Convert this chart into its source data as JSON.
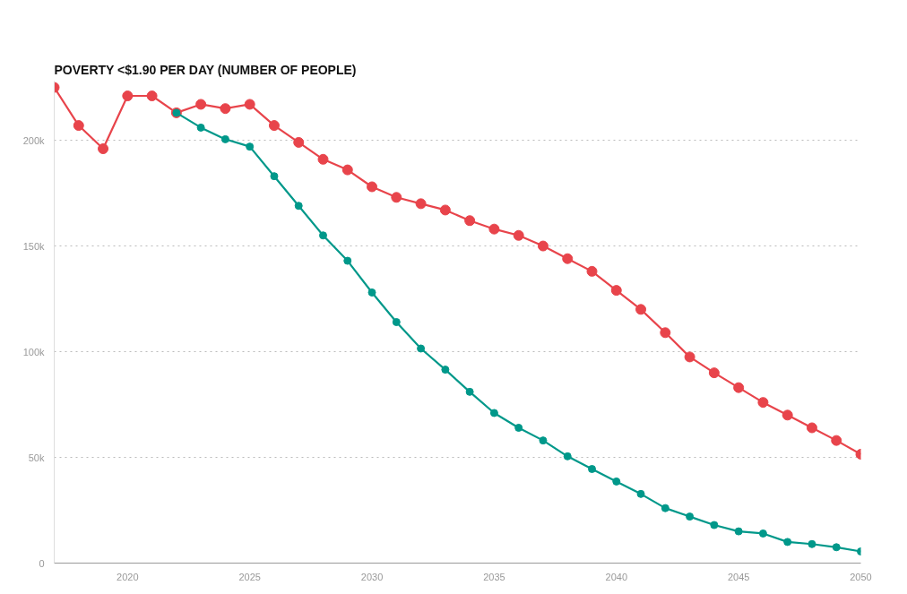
{
  "chart_data": {
    "type": "line",
    "title": "POVERTY <$1.90 PER DAY (NUMBER OF PEOPLE)",
    "x": [
      2017,
      2018,
      2019,
      2020,
      2021,
      2022,
      2023,
      2024,
      2025,
      2026,
      2027,
      2028,
      2029,
      2030,
      2031,
      2032,
      2033,
      2034,
      2035,
      2036,
      2037,
      2038,
      2039,
      2040,
      2041,
      2042,
      2043,
      2044,
      2045,
      2046,
      2047,
      2048,
      2049,
      2050
    ],
    "series": [
      {
        "color": "#e8444b",
        "values": [
          225000,
          207000,
          196000,
          221000,
          221000,
          213000,
          217000,
          215000,
          217000,
          207000,
          199000,
          191000,
          186000,
          178000,
          173000,
          170000,
          167000,
          162000,
          158000,
          155000,
          150000,
          144000,
          138000,
          129000,
          120000,
          109000,
          97500,
          90000,
          83000,
          76000,
          70000,
          64000,
          58000,
          51500
        ]
      },
      {
        "color": "#00988a",
        "values": [
          null,
          null,
          null,
          null,
          null,
          213000,
          206000,
          200500,
          197000,
          183000,
          169000,
          155000,
          143000,
          128000,
          114000,
          101500,
          91500,
          81000,
          71000,
          64000,
          58000,
          50500,
          44500,
          38600,
          32700,
          26000,
          22000,
          18000,
          15000,
          14000,
          10000,
          9000,
          7500,
          5500
        ]
      }
    ],
    "xlim": [
      2017,
      2050
    ],
    "xticks": [
      2020,
      2025,
      2030,
      2035,
      2040,
      2045,
      2050
    ],
    "ylim": [
      0,
      228000
    ],
    "yticks": [
      {
        "value": 0,
        "label": "0"
      },
      {
        "value": 50000,
        "label": "50k"
      },
      {
        "value": 100000,
        "label": "100k"
      },
      {
        "value": 150000,
        "label": "150k"
      },
      {
        "value": 200000,
        "label": "200k"
      }
    ],
    "grid": "y",
    "marker": "circle",
    "line_style": "solid"
  }
}
